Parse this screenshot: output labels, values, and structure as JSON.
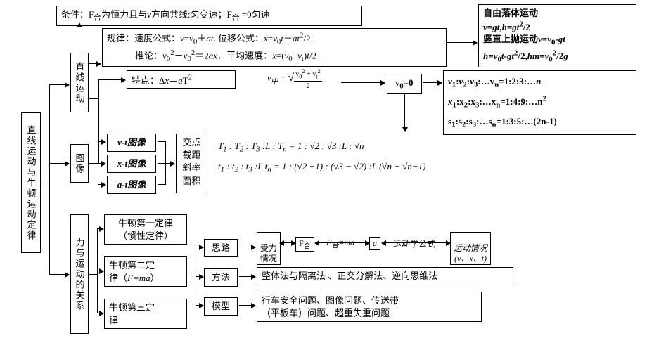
{
  "root": {
    "label": "直线运动与牛顿运动定律"
  },
  "condition": {
    "text": "条件：F<sub>合</sub>为恒力且与<i>v</i>方向共线:匀变速；F<sub>合</sub> =0匀速"
  },
  "line_motion": {
    "label": "直线运动"
  },
  "graphs": {
    "label": "图像",
    "vt": "v-t图像",
    "xt": "x-t图像",
    "at": "a-t图像",
    "analysis": "交点\n截距\n斜率\n面积"
  },
  "laws_box": {
    "l1": "规律：速度公式：<i>v</i>=<i>v</i><sub>0</sub>＋<i>at</i>. 位移公式：<i>x</i>=<i>v</i><sub>0</sub><i>t</i>＋<i>at</i><sup>2</sup>/2",
    "l2": "推论：<i>v</i><sub>0</sub><sup>2</sup>－<i>v</i><sub>0</sub><sup>2</sup>＝2<i>ax</i>．平均速度：<i>x</i>=(<i>v</i><sub>0</sub>+<i>v</i><sub>t</sub>)<i>t</i>/2"
  },
  "feature": {
    "text": "特点：Δ<i>x</i>＝<i>a</i>T<sup>2</sup>"
  },
  "vmid": {
    "label": "v<sub>中</sub> =",
    "formula_num": "v<sub>0</sub><sup>2</sup> + v<sub>t</sub><sup>2</sup>",
    "formula_den": "2"
  },
  "v0": {
    "label": "<i>v</i><sub>0</sub>=0"
  },
  "free_fall": {
    "l1": "自由落体运动",
    "l2": "<i>v</i>=<i>gt</i>,<i>h</i>=<i>gt</i><sup>2</sup>/2",
    "l3": "竖直上抛运动<i>v</i>=<i>v</i><sub>0</sub>-<i>gt</i>",
    "l4": "<i>h</i>=<i>v</i><sub>0</sub><i>t</i>-<i>gt</i><sup>2</sup>/2,<i>hm</i>=<i>v</i><sub>0</sub><sup>2</sup>/2<i>g</i>"
  },
  "ratios_box": {
    "l1": "<i>v</i><sub>1</sub>:<i>v</i><sub>2</sub>:<i>v</i><sub>3</sub>:…v<sub>n</sub>=1:2:3:…<i>n</i>",
    "l2": "<i>x</i><sub>1</sub>:x<sub>2</sub>:x<sub>3</sub>:…x<sub>n</sub>=1:4:9:…n<sup>2</sup>",
    "l3": "s<sub>1</sub>:s<sub>2</sub>:s<sub>3</sub>:…s<sub>n</sub>=1:3:5:…(2n-1)"
  },
  "ratios_text": {
    "l1": "<i>T</i><sub>1</sub> : <i>T</i><sub>2</sub> : <i>T</i><sub>3</sub> :L : <i>T</i><sub>n</sub> = 1 : √2 : √3 :L : √<i>n</i>",
    "l2": "<i>t</i><sub>1</sub> : <i>t</i><sub>2</sub> : <i>t</i><sub>3</sub> :L <i>t</i><sub>n</sub> = 1 : (√2 −1) : (√3 − √2) :L (√<i>n</i> − √<i>n</i>−1)"
  },
  "force_rel": {
    "label": "力与运动的关系"
  },
  "newton1": {
    "l1": "牛顿第一定律",
    "l2": "（惯性定律）"
  },
  "newton2": {
    "l1": "牛顿第二定",
    "l2": "律（<i>F=ma</i>）"
  },
  "newton3": {
    "l1": "牛顿第三定",
    "l2": "律"
  },
  "silu": {
    "label": "思路"
  },
  "fangfa": {
    "label": "方法"
  },
  "moxing": {
    "label": "模型"
  },
  "flow": {
    "b1": "受力\n情况",
    "b2": "F<sub>合</sub>",
    "lab1": "F<sub>合</sub>=ma",
    "b3": "a",
    "lab2": "运动学公式",
    "b4": "运动情况\n(v、x、t)"
  },
  "methods": {
    "text": "整体法与隔离法 、正交分解法、逆向思维法"
  },
  "models": {
    "l1": "行车安全问题、图像问题、传送带",
    "l2": "（平板车）问题、超重失重问题"
  }
}
